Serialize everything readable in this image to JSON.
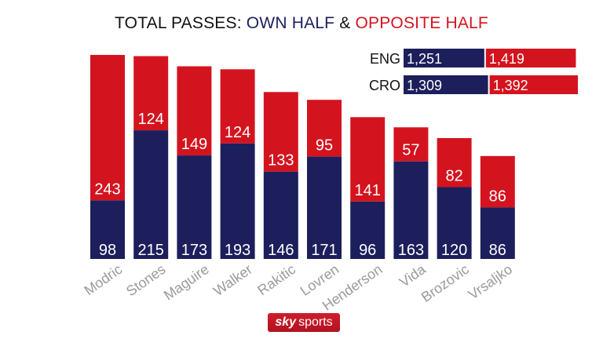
{
  "title": {
    "prefix": "TOTAL PASSES: ",
    "own": "OWN HALF",
    "amp": " & ",
    "opposite": "OPPOSITE HALF"
  },
  "colors": {
    "own": "#1c1f5c",
    "opposite": "#d3141f",
    "axis_text": "#9a9a9a",
    "title_text": "#111111"
  },
  "chart_data": {
    "type": "bar",
    "stacked": true,
    "categories": [
      "Modric",
      "Stones",
      "Maguire",
      "Walker",
      "Rakitic",
      "Lovren",
      "Henderson",
      "Vida",
      "Brozovic",
      "Vrsaljko"
    ],
    "series": [
      {
        "name": "OWN HALF",
        "values": [
          98,
          215,
          173,
          193,
          146,
          171,
          96,
          163,
          120,
          86
        ]
      },
      {
        "name": "OPPOSITE HALF",
        "values": [
          243,
          124,
          149,
          124,
          133,
          95,
          141,
          57,
          82,
          86
        ]
      }
    ],
    "ylim": [
      0,
      341
    ],
    "grid": false,
    "x_tick_rotation": -35
  },
  "team_totals": [
    {
      "team": "ENG",
      "own": 1251,
      "own_label": "1,251",
      "opposite": 1419,
      "opposite_label": "1,419"
    },
    {
      "team": "CRO",
      "own": 1309,
      "own_label": "1,309",
      "opposite": 1392,
      "opposite_label": "1,392"
    }
  ],
  "logo": {
    "sky": "sky",
    "sports": "sports"
  }
}
